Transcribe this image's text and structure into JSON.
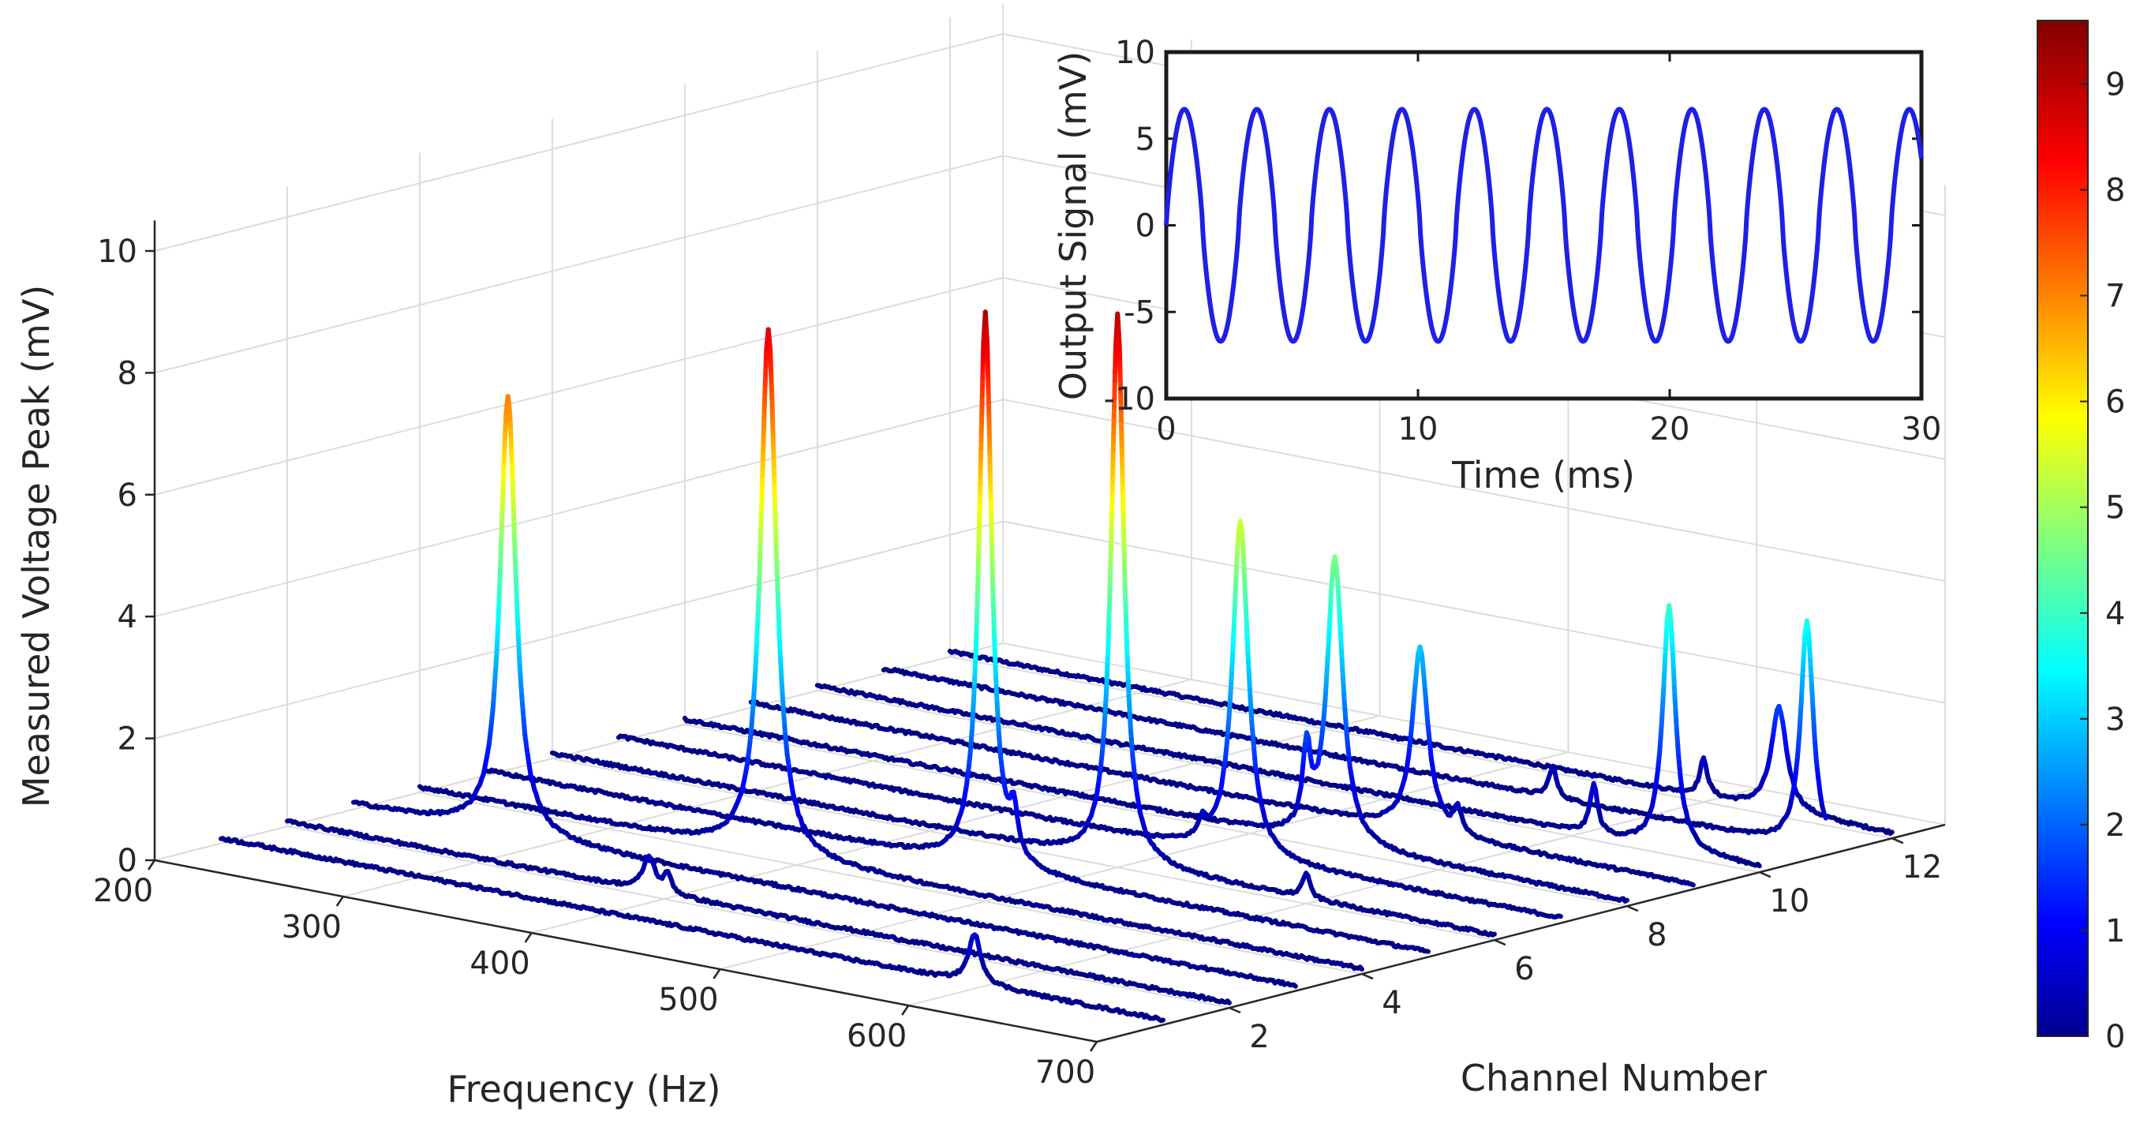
{
  "chart_data": [
    {
      "type": "line",
      "variant": "3d-waterfall",
      "title": "",
      "xlabel": "Frequency (Hz)",
      "ylabel": "Channel Number",
      "zlabel": "Measured Voltage Peak (mV)",
      "xlim": [
        200,
        700
      ],
      "ylim": [
        0,
        12
      ],
      "zlim": [
        0,
        10
      ],
      "xticks": [
        200,
        300,
        400,
        500,
        600,
        700
      ],
      "yticks": [
        2,
        4,
        6,
        8,
        10,
        12
      ],
      "zticks": [
        0,
        2,
        4,
        6,
        8,
        10
      ],
      "colormap": "jet",
      "series": [
        {
          "name": "Channel 1",
          "channel": 1,
          "peak_frequency": 600,
          "peak_value": 0.8,
          "width": 4,
          "secondary": []
        },
        {
          "name": "Channel 2",
          "channel": 2,
          "peak_frequency": 392,
          "peak_value": 0.55,
          "width": 4,
          "secondary": [
            {
              "f": 402,
              "v": 0.3
            }
          ]
        },
        {
          "name": "Channel 3",
          "channel": 3,
          "peak_frequency": 282,
          "peak_value": 7.2,
          "width": 5,
          "secondary": []
        },
        {
          "name": "Channel 4",
          "channel": 4,
          "peak_frequency": 385,
          "peak_value": 8.6,
          "width": 5,
          "secondary": []
        },
        {
          "name": "Channel 5",
          "channel": 5,
          "peak_frequency": 465,
          "peak_value": 9.1,
          "width": 4,
          "secondary": [
            {
              "f": 480,
              "v": 0.7
            }
          ]
        },
        {
          "name": "Channel 6",
          "channel": 6,
          "peak_frequency": 500,
          "peak_value": 9.0,
          "width": 4,
          "secondary": [
            {
              "f": 600,
              "v": 0.4
            }
          ]
        },
        {
          "name": "Channel 7",
          "channel": 7,
          "peak_frequency": 530,
          "peak_value": 5.5,
          "width": 5,
          "secondary": [
            {
              "f": 510,
              "v": 0.3
            }
          ]
        },
        {
          "name": "Channel 8",
          "channel": 8,
          "peak_frequency": 545,
          "peak_value": 4.7,
          "width": 5,
          "secondary": [
            {
              "f": 530,
              "v": 1.3
            }
          ]
        },
        {
          "name": "Channel 9",
          "channel": 9,
          "peak_frequency": 555,
          "peak_value": 3.0,
          "width": 5,
          "secondary": [
            {
              "f": 575,
              "v": 0.4
            }
          ]
        },
        {
          "name": "Channel 10",
          "channel": 10,
          "peak_frequency": 652,
          "peak_value": 4.0,
          "width": 4,
          "secondary": [
            {
              "f": 612,
              "v": 0.8
            }
          ]
        },
        {
          "name": "Channel 11",
          "channel": 11,
          "peak_frequency": 690,
          "peak_value": 3.7,
          "width": 4,
          "secondary": [
            {
              "f": 555,
              "v": 0.5
            }
          ]
        },
        {
          "name": "Channel 12",
          "channel": 12,
          "peak_frequency": 640,
          "peak_value": 1.7,
          "width": 5,
          "secondary": [
            {
              "f": 600,
              "v": 0.6
            }
          ]
        }
      ]
    },
    {
      "type": "line",
      "title": "",
      "xlabel": "Time (ms)",
      "ylabel": "Output Signal (mV)",
      "xlim": [
        0,
        30
      ],
      "ylim": [
        -10,
        10
      ],
      "xticks": [
        0,
        10,
        20,
        30
      ],
      "yticks": [
        10,
        5,
        0,
        -5,
        -10
      ],
      "series": [
        {
          "name": "Output Signal",
          "amplitude": 6.7,
          "period_ms": 2.88,
          "phase_start": 0,
          "color": "#1f1fe6"
        }
      ]
    }
  ],
  "colorbar": {
    "ticks": [
      0,
      1,
      2,
      3,
      4,
      5,
      6,
      7,
      8,
      9
    ],
    "range": [
      0,
      9.6
    ],
    "colormap": "jet"
  },
  "colors": {
    "inset_line": "#1f1fe6",
    "axis": "#262626",
    "grid": "#dcdcdc"
  }
}
